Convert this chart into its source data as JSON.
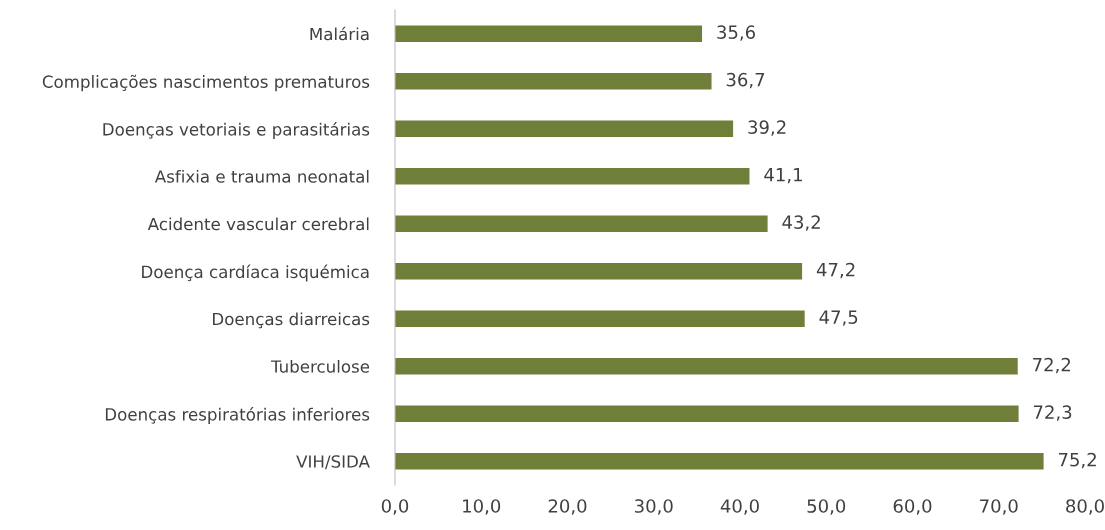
{
  "chart_data": {
    "type": "bar",
    "orientation": "horizontal",
    "categories": [
      "Malária",
      "Complicações nascimentos prematuros",
      "Doenças vetoriais e parasitárias",
      "Asfixia e trauma neonatal",
      "Acidente vascular cerebral",
      "Doença cardíaca isquémica",
      "Doenças diarreicas",
      "Tuberculose",
      "Doenças respiratórias inferiores",
      "VIH/SIDA"
    ],
    "values": [
      35.6,
      36.7,
      39.2,
      41.1,
      43.2,
      47.2,
      47.5,
      72.2,
      72.3,
      75.2
    ],
    "value_labels": [
      "35,6",
      "36,7",
      "39,2",
      "41,1",
      "43,2",
      "47,2",
      "47,5",
      "72,2",
      "72,3",
      "75,2"
    ],
    "color": "#6f7f3a",
    "xlim": [
      0,
      80
    ],
    "xticks": [
      {
        "value": 0,
        "label": "0,0"
      },
      {
        "value": 10,
        "label": "10,0"
      },
      {
        "value": 20,
        "label": "20,0"
      },
      {
        "value": 30,
        "label": "30,0"
      },
      {
        "value": 40,
        "label": "40,0"
      },
      {
        "value": 50,
        "label": "50,0"
      },
      {
        "value": 60,
        "label": "60,0"
      },
      {
        "value": 70,
        "label": "70,0"
      },
      {
        "value": 80,
        "label": "80,0"
      }
    ],
    "grid": false,
    "legend": false
  }
}
